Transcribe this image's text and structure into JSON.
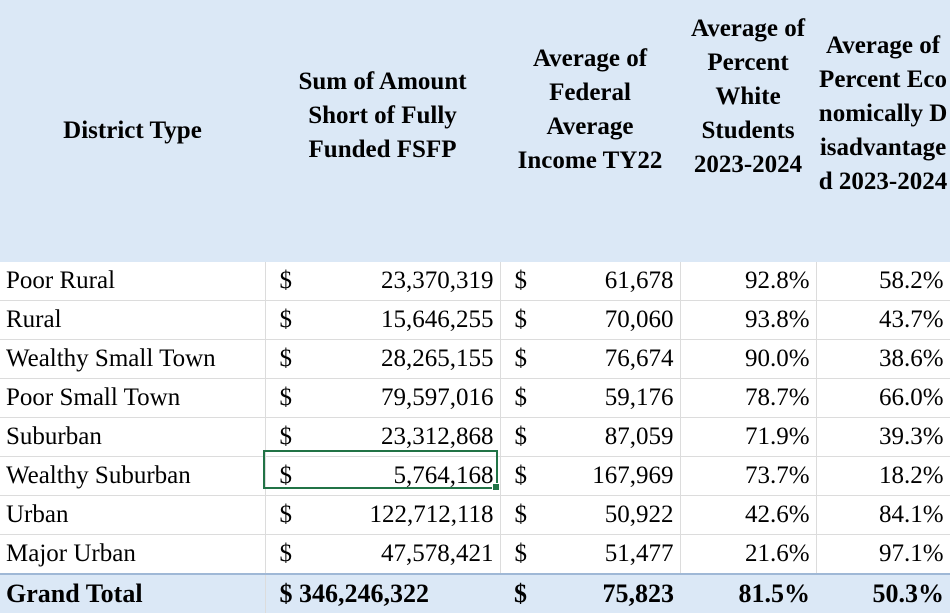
{
  "headers": {
    "district_type": "District Type",
    "sum_amount_short": "Sum of Amount Short of Fully Funded FSFP",
    "avg_income": "Average of Federal Average Income TY22",
    "avg_white": "Average of Percent White Students 2023-2024",
    "avg_econ": "Average of Percent Economically Disadvantaged 2023-2024"
  },
  "rows": [
    {
      "label": "Poor Rural",
      "cur1": "$",
      "amount": "23,370,319",
      "cur2": "$",
      "income": "61,678",
      "white": "92.8%",
      "econ": "58.2%"
    },
    {
      "label": "Rural",
      "cur1": "$",
      "amount": "15,646,255",
      "cur2": "$",
      "income": "70,060",
      "white": "93.8%",
      "econ": "43.7%"
    },
    {
      "label": "Wealthy Small Town",
      "cur1": "$",
      "amount": "28,265,155",
      "cur2": "$",
      "income": "76,674",
      "white": "90.0%",
      "econ": "38.6%"
    },
    {
      "label": "Poor Small Town",
      "cur1": "$",
      "amount": "79,597,016",
      "cur2": "$",
      "income": "59,176",
      "white": "78.7%",
      "econ": "66.0%"
    },
    {
      "label": "Suburban",
      "cur1": "$",
      "amount": "23,312,868",
      "cur2": "$",
      "income": "87,059",
      "white": "71.9%",
      "econ": "39.3%"
    },
    {
      "label": "Wealthy Suburban",
      "cur1": "$",
      "amount": "5,764,168",
      "cur2": "$",
      "income": "167,969",
      "white": "73.7%",
      "econ": "18.2%"
    },
    {
      "label": "Urban",
      "cur1": "$",
      "amount": "122,712,118",
      "cur2": "$",
      "income": "50,922",
      "white": "42.6%",
      "econ": "84.1%"
    },
    {
      "label": "Major Urban",
      "cur1": "$",
      "amount": "47,578,421",
      "cur2": "$",
      "income": "51,477",
      "white": "21.6%",
      "econ": "97.1%"
    }
  ],
  "total": {
    "label": "Grand Total",
    "amount": "$ 346,246,322",
    "cur2": "$",
    "income": "75,823",
    "white": "81.5%",
    "econ": "50.3%"
  }
}
